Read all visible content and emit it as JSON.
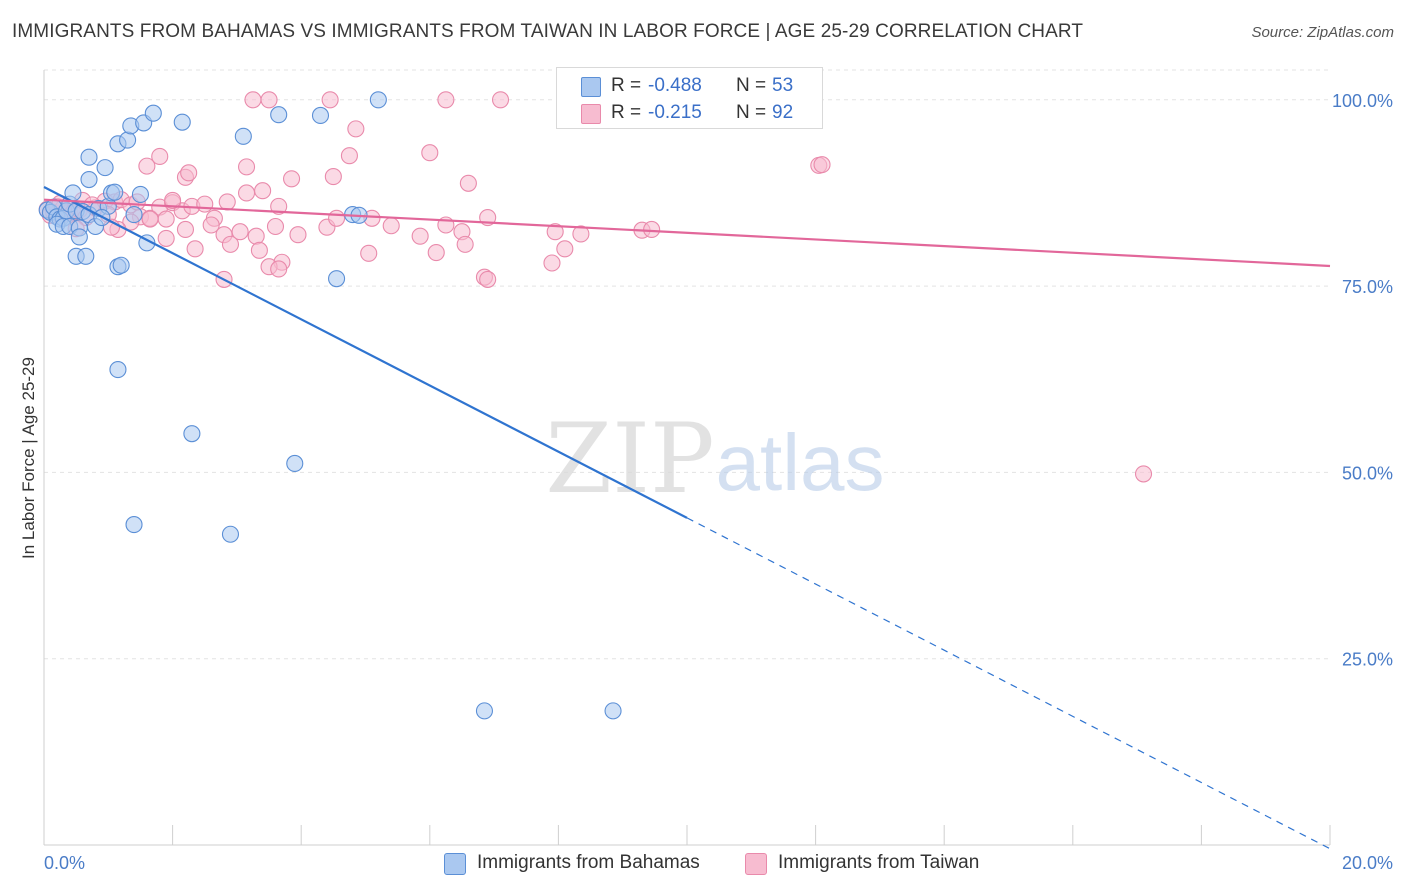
{
  "header": {
    "title": "IMMIGRANTS FROM BAHAMAS VS IMMIGRANTS FROM TAIWAN IN LABOR FORCE | AGE 25-29 CORRELATION CHART",
    "source": "Source: ZipAtlas.com"
  },
  "watermark": {
    "zip": "ZIP",
    "atlas": "atlas"
  },
  "legend_top": {
    "rows": [
      {
        "r_label": "R =",
        "r_value": "-0.488",
        "n_label": "N =",
        "n_value": "53"
      },
      {
        "r_label": "R =",
        "r_value": "-0.215",
        "n_label": "N =",
        "n_value": "92"
      }
    ]
  },
  "legend_bottom": {
    "items": [
      {
        "label": "Immigrants from Bahamas"
      },
      {
        "label": "Immigrants from Taiwan"
      }
    ]
  },
  "chart_data": {
    "type": "scatter",
    "title": "IMMIGRANTS FROM BAHAMAS VS IMMIGRANTS FROM TAIWAN IN LABOR FORCE | AGE 25-29 CORRELATION CHART",
    "xlabel": "",
    "ylabel": "In Labor Force | Age 25-29",
    "xlim": [
      0,
      20
    ],
    "ylim": [
      0,
      104
    ],
    "x_tick_labels": [
      "0.0%",
      "20.0%"
    ],
    "y_ticks": [
      25,
      50,
      75,
      100
    ],
    "y_tick_labels": [
      "25.0%",
      "50.0%",
      "75.0%",
      "100.0%"
    ],
    "grid": true,
    "legend_position": "top-center",
    "colors": {
      "bahamas_fill": "#aac8f0",
      "bahamas_stroke": "#5b8fd6",
      "bahamas_line": "#2f74d0",
      "taiwan_fill": "#f7bcd0",
      "taiwan_stroke": "#e98aab",
      "taiwan_line": "#e2679a"
    },
    "series": [
      {
        "name": "Immigrants from Bahamas",
        "r": -0.488,
        "n": 53,
        "trend": {
          "x0": 0.0,
          "y0": 88.3,
          "x1": 20.0,
          "y1": -0.5,
          "solid_until_x": 10.0
        },
        "points": [
          [
            0.05,
            85.2
          ],
          [
            0.1,
            84.9
          ],
          [
            0.15,
            85.6
          ],
          [
            0.2,
            84.3
          ],
          [
            0.25,
            84.0
          ],
          [
            0.3,
            84.1
          ],
          [
            0.35,
            85.1
          ],
          [
            0.4,
            86.0
          ],
          [
            0.5,
            85.1
          ],
          [
            0.6,
            85.0
          ],
          [
            0.7,
            84.6
          ],
          [
            0.85,
            85.4
          ],
          [
            1.0,
            85.7
          ],
          [
            0.2,
            83.3
          ],
          [
            0.3,
            83.0
          ],
          [
            0.4,
            83.0
          ],
          [
            0.55,
            82.8
          ],
          [
            0.8,
            83.0
          ],
          [
            0.55,
            81.6
          ],
          [
            0.9,
            84.2
          ],
          [
            1.4,
            84.6
          ],
          [
            0.5,
            79.0
          ],
          [
            0.65,
            79.0
          ],
          [
            1.15,
            77.6
          ],
          [
            1.2,
            77.8
          ],
          [
            1.6,
            80.8
          ],
          [
            0.45,
            87.5
          ],
          [
            0.7,
            89.3
          ],
          [
            0.95,
            90.9
          ],
          [
            1.05,
            87.5
          ],
          [
            1.5,
            87.3
          ],
          [
            0.7,
            92.3
          ],
          [
            1.15,
            94.1
          ],
          [
            1.3,
            94.6
          ],
          [
            1.35,
            96.5
          ],
          [
            1.55,
            96.9
          ],
          [
            1.7,
            98.2
          ],
          [
            2.15,
            97.0
          ],
          [
            3.1,
            95.1
          ],
          [
            3.65,
            98.0
          ],
          [
            4.3,
            97.9
          ],
          [
            5.2,
            100.0
          ],
          [
            4.8,
            84.6
          ],
          [
            4.9,
            84.5
          ],
          [
            4.55,
            76.0
          ],
          [
            1.15,
            63.8
          ],
          [
            2.3,
            55.2
          ],
          [
            3.9,
            51.2
          ],
          [
            1.4,
            43.0
          ],
          [
            2.9,
            41.7
          ],
          [
            6.85,
            18.0
          ],
          [
            8.85,
            18.0
          ],
          [
            1.1,
            87.6
          ]
        ]
      },
      {
        "name": "Immigrants from Taiwan",
        "r": -0.215,
        "n": 92,
        "trend": {
          "x0": 0.0,
          "y0": 86.6,
          "x1": 20.0,
          "y1": 77.7,
          "solid_until_x": 20.0
        },
        "points": [
          [
            0.05,
            85.3
          ],
          [
            0.1,
            84.5
          ],
          [
            0.15,
            84.9
          ],
          [
            0.2,
            85.7
          ],
          [
            0.3,
            85.5
          ],
          [
            0.35,
            84.7
          ],
          [
            0.4,
            85.0
          ],
          [
            0.45,
            84.9
          ],
          [
            0.55,
            85.2
          ],
          [
            0.65,
            84.2
          ],
          [
            0.8,
            85.5
          ],
          [
            0.95,
            86.4
          ],
          [
            1.1,
            86.3
          ],
          [
            1.2,
            86.6
          ],
          [
            1.35,
            85.9
          ],
          [
            1.5,
            84.3
          ],
          [
            1.65,
            84.1
          ],
          [
            1.8,
            85.6
          ],
          [
            1.9,
            84.0
          ],
          [
            2.0,
            86.2
          ],
          [
            2.15,
            85.1
          ],
          [
            2.3,
            85.7
          ],
          [
            2.5,
            86.0
          ],
          [
            2.65,
            84.1
          ],
          [
            2.85,
            86.3
          ],
          [
            1.35,
            83.6
          ],
          [
            1.65,
            84.0
          ],
          [
            2.2,
            82.6
          ],
          [
            2.6,
            83.2
          ],
          [
            2.8,
            81.9
          ],
          [
            3.05,
            82.3
          ],
          [
            3.3,
            81.7
          ],
          [
            3.6,
            83.0
          ],
          [
            3.95,
            81.9
          ],
          [
            3.15,
            87.5
          ],
          [
            3.4,
            87.8
          ],
          [
            3.65,
            85.7
          ],
          [
            1.15,
            82.6
          ],
          [
            2.35,
            80.0
          ],
          [
            2.9,
            80.6
          ],
          [
            3.35,
            79.8
          ],
          [
            3.7,
            78.2
          ],
          [
            3.5,
            77.6
          ],
          [
            3.65,
            77.3
          ],
          [
            2.8,
            75.9
          ],
          [
            1.6,
            91.1
          ],
          [
            1.8,
            92.4
          ],
          [
            2.2,
            89.6
          ],
          [
            2.25,
            90.2
          ],
          [
            3.15,
            91.0
          ],
          [
            3.85,
            89.4
          ],
          [
            4.5,
            89.7
          ],
          [
            4.75,
            92.5
          ],
          [
            4.85,
            96.1
          ],
          [
            3.25,
            100.0
          ],
          [
            3.5,
            100.0
          ],
          [
            4.45,
            100.0
          ],
          [
            6.25,
            100.0
          ],
          [
            7.1,
            100.0
          ],
          [
            6.0,
            92.9
          ],
          [
            6.6,
            88.8
          ],
          [
            4.4,
            82.9
          ],
          [
            4.55,
            84.1
          ],
          [
            5.1,
            84.1
          ],
          [
            5.4,
            83.1
          ],
          [
            5.85,
            81.7
          ],
          [
            6.1,
            79.5
          ],
          [
            6.25,
            83.2
          ],
          [
            6.5,
            82.3
          ],
          [
            6.55,
            80.6
          ],
          [
            6.9,
            84.2
          ],
          [
            5.05,
            79.4
          ],
          [
            6.85,
            76.2
          ],
          [
            6.9,
            75.9
          ],
          [
            7.9,
            78.1
          ],
          [
            8.1,
            80.0
          ],
          [
            7.95,
            82.3
          ],
          [
            8.35,
            82.0
          ],
          [
            9.3,
            82.5
          ],
          [
            9.45,
            82.6
          ],
          [
            12.05,
            91.2
          ],
          [
            12.1,
            91.3
          ],
          [
            17.1,
            49.8
          ],
          [
            0.5,
            82.7
          ],
          [
            0.6,
            86.5
          ],
          [
            0.75,
            85.9
          ],
          [
            1.0,
            84.6
          ],
          [
            1.05,
            82.9
          ],
          [
            2.0,
            86.5
          ],
          [
            1.9,
            81.4
          ],
          [
            1.45,
            86.3
          ],
          [
            0.25,
            86.1
          ]
        ]
      }
    ]
  }
}
